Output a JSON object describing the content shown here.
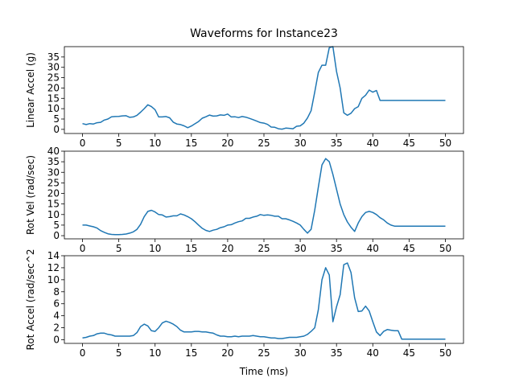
{
  "title": "Waveforms for Instance23",
  "xlabel": "Time (ms)",
  "line_color": "#1f77b4",
  "chart_data": [
    {
      "type": "line",
      "ylabel": "Linear Accel (g)",
      "xlim": [
        -2.5,
        52.5
      ],
      "ylim": [
        -2,
        40
      ],
      "xticks": [
        0,
        5,
        10,
        15,
        20,
        25,
        30,
        35,
        40,
        45,
        50
      ],
      "yticks": [
        0,
        5,
        10,
        15,
        20,
        25,
        30,
        35
      ],
      "grid": false,
      "series": [
        {
          "x": [
            0,
            0.5,
            1,
            1.5,
            2,
            2.5,
            3,
            3.5,
            4,
            4.5,
            5,
            5.5,
            6,
            6.5,
            7,
            7.5,
            8,
            8.5,
            9,
            9.5,
            10,
            10.5,
            11,
            11.5,
            12,
            12.5,
            13,
            13.5,
            14,
            14.5,
            15,
            15.5,
            16,
            16.5,
            17,
            17.5,
            18,
            18.5,
            19,
            19.5,
            20,
            20.5,
            21,
            21.5,
            22,
            22.5,
            23,
            23.5,
            24,
            24.5,
            25,
            25.5,
            26,
            26.5,
            27,
            27.5,
            28,
            28.5,
            29,
            29.5,
            30,
            30.5,
            31,
            31.5,
            32,
            32.5,
            33,
            33.5,
            34,
            34.5,
            35,
            35.5,
            36,
            36.5,
            37,
            37.5,
            38,
            38.5,
            39,
            39.5,
            40,
            40.5,
            41,
            41.5,
            42,
            42.5,
            43,
            43.5,
            44,
            44.5,
            45,
            45.5,
            46,
            46.5,
            47,
            47.5,
            48,
            48.5,
            49,
            49.5,
            50
          ],
          "values": [
            2.8,
            2.3,
            2.8,
            2.6,
            3.2,
            3.4,
            4.5,
            5.0,
            6.1,
            6.2,
            6.3,
            6.5,
            6.6,
            5.8,
            6.0,
            6.8,
            8.3,
            10.0,
            11.9,
            11.0,
            9.5,
            6.0,
            6.0,
            6.2,
            5.6,
            3.5,
            2.6,
            2.3,
            1.7,
            0.8,
            1.6,
            2.7,
            3.8,
            5.4,
            6.1,
            6.9,
            6.4,
            6.5,
            7.0,
            6.8,
            7.4,
            6.0,
            6.1,
            5.7,
            6.2,
            5.9,
            5.3,
            4.7,
            4.0,
            3.3,
            3.0,
            2.4,
            1.1,
            1.0,
            0.3,
            0.1,
            0.6,
            0.5,
            0.3,
            1.5,
            1.7,
            3.0,
            5.5,
            9.0,
            18.0,
            27.5,
            31.0,
            31.0,
            39.5,
            40.0,
            28.0,
            20.0,
            8.0,
            6.8,
            7.8,
            10.0,
            11.0,
            15.0,
            16.5,
            19.0,
            18.0,
            18.8,
            14.0,
            14.0,
            14.0,
            14.0,
            14.0,
            14.0,
            14.0,
            14.0,
            14.0,
            14.0,
            14.0,
            14.0,
            14.0,
            14.0,
            14.0,
            14.0,
            14.0,
            14.0,
            14.0
          ]
        }
      ]
    },
    {
      "type": "line",
      "ylabel": "Rot Vel (rad/sec)",
      "xlim": [
        -2.5,
        52.5
      ],
      "ylim": [
        -1.5,
        40
      ],
      "xticks": [
        0,
        5,
        10,
        15,
        20,
        25,
        30,
        35,
        40,
        45,
        50
      ],
      "yticks": [
        0,
        5,
        10,
        15,
        20,
        25,
        30,
        35,
        40
      ],
      "grid": false,
      "series": [
        {
          "x": [
            0,
            0.5,
            1,
            1.5,
            2,
            2.5,
            3,
            3.5,
            4,
            4.5,
            5,
            5.5,
            6,
            6.5,
            7,
            7.5,
            8,
            8.5,
            9,
            9.5,
            10,
            10.5,
            11,
            11.5,
            12,
            12.5,
            13,
            13.5,
            14,
            14.5,
            15,
            15.5,
            16,
            16.5,
            17,
            17.5,
            18,
            18.5,
            19,
            19.5,
            20,
            20.5,
            21,
            21.5,
            22,
            22.5,
            23,
            23.5,
            24,
            24.5,
            25,
            25.5,
            26,
            26.5,
            27,
            27.5,
            28,
            28.5,
            29,
            29.5,
            30,
            30.5,
            31,
            31.5,
            32,
            32.5,
            33,
            33.5,
            34,
            34.5,
            35,
            35.5,
            36,
            36.5,
            37,
            37.5,
            38,
            38.5,
            39,
            39.5,
            40,
            40.5,
            41,
            41.5,
            42,
            42.5,
            43,
            43.5,
            44,
            44.5,
            45,
            45.5,
            46,
            46.5,
            47,
            47.5,
            48,
            48.5,
            49,
            49.5,
            50
          ],
          "values": [
            5.0,
            5.0,
            4.6,
            4.2,
            3.6,
            2.4,
            1.6,
            0.9,
            0.6,
            0.5,
            0.5,
            0.6,
            0.8,
            1.2,
            1.8,
            3.0,
            5.4,
            9.0,
            11.5,
            12.0,
            11.2,
            10.0,
            9.8,
            8.8,
            9.0,
            9.4,
            9.4,
            10.3,
            9.8,
            9.0,
            8.0,
            6.6,
            5.0,
            3.5,
            2.5,
            2.0,
            2.6,
            3.0,
            3.8,
            4.2,
            5.0,
            5.2,
            6.0,
            6.6,
            7.0,
            8.2,
            8.2,
            8.8,
            9.2,
            10.0,
            9.6,
            9.8,
            9.6,
            9.2,
            9.2,
            8.0,
            8.0,
            7.5,
            6.8,
            6.0,
            5.0,
            3.0,
            1.2,
            3.0,
            12.0,
            23.0,
            33.5,
            36.5,
            35.0,
            29.0,
            22.0,
            15.0,
            10.0,
            6.5,
            4.0,
            2.0,
            6.0,
            9.0,
            11.0,
            11.5,
            11.0,
            10.0,
            8.5,
            7.5,
            6.0,
            5.0,
            4.5,
            4.5,
            4.5,
            4.5,
            4.5,
            4.5,
            4.5,
            4.5,
            4.5,
            4.5,
            4.5,
            4.5,
            4.5,
            4.5,
            4.5
          ]
        }
      ]
    },
    {
      "type": "line",
      "ylabel": "Rot Accel (rad/sec^2",
      "xlim": [
        -2.5,
        52.5
      ],
      "ylim": [
        -0.6,
        14
      ],
      "xticks": [
        0,
        5,
        10,
        15,
        20,
        25,
        30,
        35,
        40,
        45,
        50
      ],
      "yticks": [
        0,
        2,
        4,
        6,
        8,
        10,
        12,
        14
      ],
      "grid": false,
      "series": [
        {
          "x": [
            0,
            0.5,
            1,
            1.5,
            2,
            2.5,
            3,
            3.5,
            4,
            4.5,
            5,
            5.5,
            6,
            6.5,
            7,
            7.5,
            8,
            8.5,
            9,
            9.5,
            10,
            10.5,
            11,
            11.5,
            12,
            12.5,
            13,
            13.5,
            14,
            14.5,
            15,
            15.5,
            16,
            16.5,
            17,
            17.5,
            18,
            18.5,
            19,
            19.5,
            20,
            20.5,
            21,
            21.5,
            22,
            22.5,
            23,
            23.5,
            24,
            24.5,
            25,
            25.5,
            26,
            26.5,
            27,
            27.5,
            28,
            28.5,
            29,
            29.5,
            30,
            30.5,
            31,
            31.5,
            32,
            32.5,
            33,
            33.5,
            34,
            34.5,
            35,
            35.5,
            36,
            36.5,
            37,
            37.5,
            38,
            38.5,
            39,
            39.5,
            40,
            40.5,
            41,
            41.5,
            42,
            42.5,
            43,
            43.5,
            44,
            44.5,
            45,
            45.5,
            46,
            46.5,
            47,
            47.5,
            48,
            48.5,
            49,
            49.5,
            50
          ],
          "values": [
            0.3,
            0.4,
            0.6,
            0.7,
            1.0,
            1.1,
            1.1,
            0.9,
            0.8,
            0.6,
            0.6,
            0.6,
            0.6,
            0.6,
            0.7,
            1.2,
            2.2,
            2.6,
            2.3,
            1.5,
            1.4,
            2.0,
            2.8,
            3.1,
            2.9,
            2.6,
            2.2,
            1.6,
            1.3,
            1.3,
            1.3,
            1.4,
            1.4,
            1.3,
            1.3,
            1.2,
            1.1,
            0.8,
            0.6,
            0.6,
            0.5,
            0.5,
            0.6,
            0.5,
            0.6,
            0.6,
            0.6,
            0.7,
            0.6,
            0.5,
            0.5,
            0.4,
            0.3,
            0.3,
            0.2,
            0.2,
            0.3,
            0.4,
            0.4,
            0.4,
            0.5,
            0.6,
            0.9,
            1.4,
            2.0,
            5.0,
            10.0,
            12.0,
            10.8,
            3.0,
            5.5,
            7.5,
            12.5,
            12.8,
            11.2,
            7.0,
            4.7,
            4.8,
            5.6,
            4.8,
            3.0,
            1.3,
            0.7,
            1.4,
            1.7,
            1.6,
            1.5,
            1.5,
            0.1,
            0.1,
            0.1,
            0.1,
            0.1,
            0.1,
            0.1,
            0.1,
            0.1,
            0.1,
            0.1,
            0.1,
            0.1
          ]
        }
      ]
    }
  ]
}
